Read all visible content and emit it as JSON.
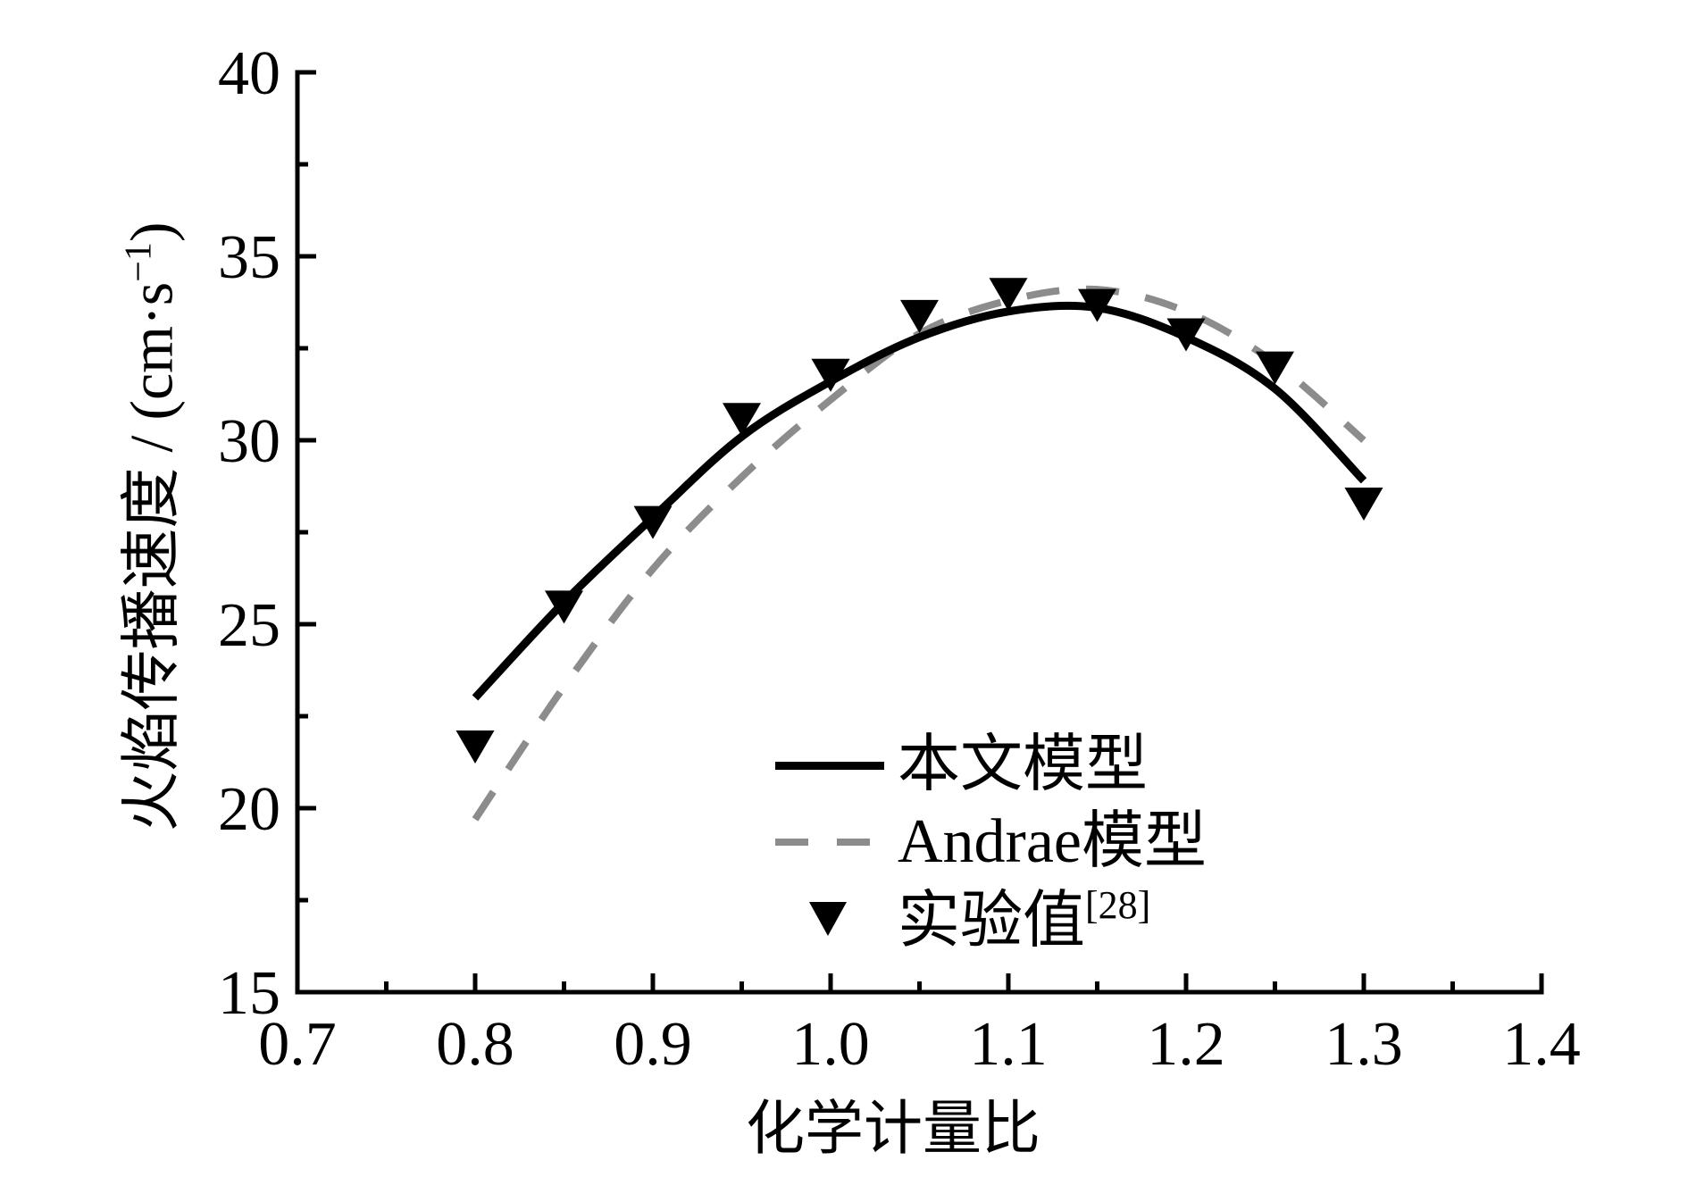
{
  "page": {
    "background": "#ffffff"
  },
  "chart_data": {
    "type": "line",
    "title": "",
    "xlabel": "化学计量比",
    "ylabel": "火焰传播速度 / (cm·s⁻¹)",
    "ylabel_parts": {
      "main": "火焰传播速度 / (cm·s",
      "sup": "−1",
      "close": ")"
    },
    "xlim": [
      0.7,
      1.4
    ],
    "ylim": [
      15,
      40
    ],
    "x_major_ticks": [
      0.7,
      0.8,
      0.9,
      1.0,
      1.1,
      1.2,
      1.3,
      1.4
    ],
    "x_tick_labels": [
      "0.7",
      "0.8",
      "0.9",
      "1.0",
      "1.1",
      "1.2",
      "1.3",
      "1.4"
    ],
    "x_minor_ticks": [
      0.75,
      0.85,
      0.95,
      1.05,
      1.15,
      1.25,
      1.35
    ],
    "y_major_ticks": [
      15,
      20,
      25,
      30,
      35,
      40
    ],
    "y_tick_labels": [
      "15",
      "20",
      "25",
      "30",
      "35",
      "40"
    ],
    "y_minor_ticks": [
      17.5,
      22.5,
      27.5,
      32.5,
      37.5
    ],
    "grid": false,
    "frame": "left-bottom-spines-only",
    "tick_direction": "in",
    "legend_position": "inside-bottom-center",
    "axis_color": "#000000",
    "series": [
      {
        "id": "andrae-model",
        "name": "Andrae模型",
        "type": "line",
        "line_style": "dashed",
        "color": "#8c8c8c",
        "stroke_width": 8,
        "dash": [
          37,
          30
        ],
        "x": [
          0.8,
          0.85,
          0.9,
          0.95,
          1.0,
          1.05,
          1.1,
          1.15,
          1.2,
          1.25,
          1.3
        ],
        "y": [
          19.7,
          23.3,
          26.5,
          29.0,
          31.1,
          32.9,
          33.8,
          34.1,
          33.5,
          32.1,
          30.0
        ]
      },
      {
        "id": "present-model",
        "name": "本文模型",
        "type": "line",
        "line_style": "solid",
        "color": "#000000",
        "stroke_width": 9,
        "x": [
          0.8,
          0.85,
          0.9,
          0.95,
          1.0,
          1.05,
          1.1,
          1.15,
          1.2,
          1.25,
          1.3
        ],
        "y": [
          23.0,
          25.6,
          27.9,
          30.1,
          31.6,
          32.8,
          33.5,
          33.6,
          32.8,
          31.4,
          28.9
        ]
      },
      {
        "id": "experimental",
        "name": "实验值",
        "name_sup": "[28]",
        "type": "scatter",
        "marker": "triangle-down",
        "color": "#000000",
        "x": [
          0.8,
          0.85,
          0.9,
          0.95,
          1.0,
          1.05,
          1.1,
          1.15,
          1.2,
          1.25,
          1.3
        ],
        "y": [
          21.7,
          25.5,
          27.8,
          30.6,
          31.8,
          33.4,
          34.0,
          33.7,
          32.9,
          32.0,
          28.3
        ]
      }
    ]
  },
  "legend": {
    "items": [
      {
        "label": "本文模型",
        "sample": "solid-line"
      },
      {
        "label": "Andrae模型",
        "sample": "dashed-line"
      },
      {
        "label": "实验值",
        "sup": "[28]",
        "sample": "triangle-down-marker"
      }
    ]
  }
}
